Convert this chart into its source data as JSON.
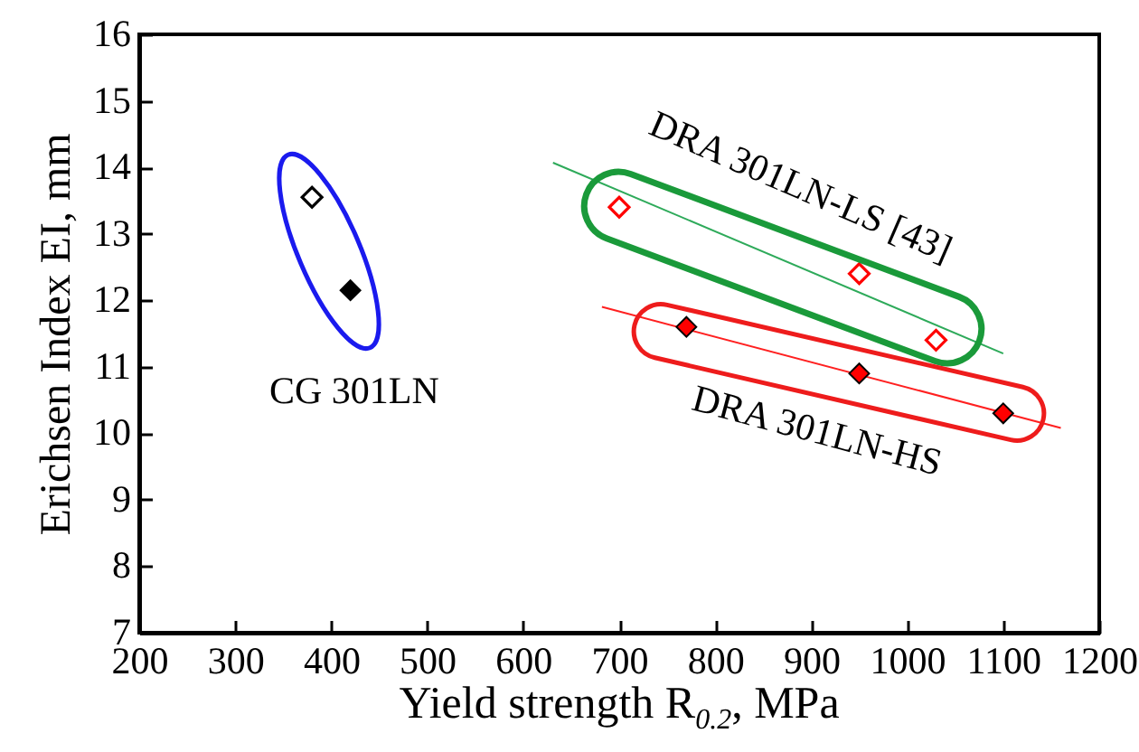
{
  "chart_data": {
    "type": "scatter",
    "xlabel": "Yield strength R$_{0.2}$, MPa",
    "ylabel": "Erichsen Index EI, mm",
    "xlim": [
      200,
      1200
    ],
    "ylim": [
      7,
      16
    ],
    "xticks": [
      200,
      300,
      400,
      500,
      600,
      700,
      800,
      900,
      1000,
      1100,
      1200
    ],
    "yticks": [
      7,
      8,
      9,
      10,
      11,
      12,
      13,
      14,
      15,
      16
    ],
    "grid": false,
    "annotations": [
      "CG 301LN",
      "DRA 301LN-LS [43]",
      "DRA 301LN-HS"
    ],
    "series": [
      {
        "type": "line",
        "color": "#2eaa5a",
        "x": [
          631,
          1100
        ],
        "values": [
          14.07,
          11.2
        ]
      },
      {
        "type": "line",
        "color": "#ff2020",
        "x": [
          682,
          1160
        ],
        "values": [
          11.9,
          10.08
        ]
      },
      {
        "type": "scatter",
        "marker": "diamond",
        "color": "#000000",
        "x": [
          380
        ],
        "values": [
          13.55
        ]
      },
      {
        "type": "scatter",
        "marker": "diamond",
        "color": "#000000",
        "x": [
          420
        ],
        "values": [
          12.15
        ]
      },
      {
        "type": "scatter",
        "marker": "diamond",
        "color": "#ff0000",
        "x": [
          700,
          950,
          1030
        ],
        "values": [
          13.4,
          12.4,
          11.4
        ]
      },
      {
        "type": "scatter",
        "marker": "diamond",
        "color": "#ff0000",
        "x": [
          770,
          950,
          1100
        ],
        "values": [
          11.6,
          10.9,
          10.3
        ]
      }
    ]
  }
}
